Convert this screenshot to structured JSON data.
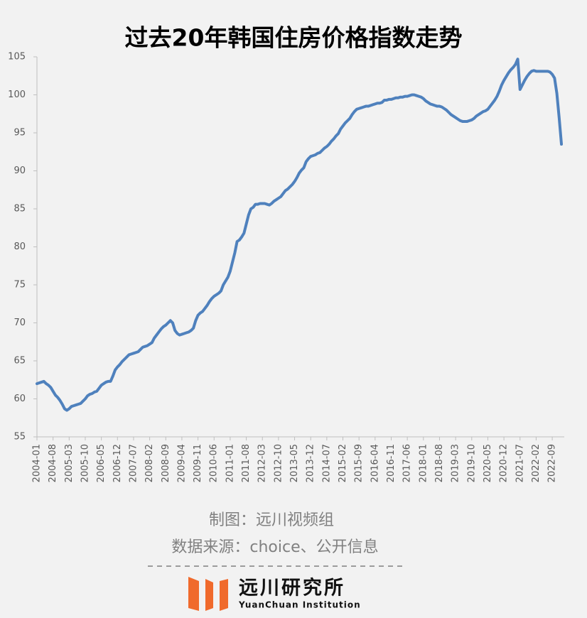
{
  "chart_data": {
    "type": "line",
    "title": "过去20年韩国住房价格指数走势",
    "categories": [
      "2004-01",
      null,
      null,
      null,
      null,
      null,
      null,
      "2004-08",
      null,
      null,
      null,
      null,
      null,
      null,
      "2005-03",
      null,
      null,
      null,
      null,
      null,
      null,
      "2005-10",
      null,
      null,
      null,
      null,
      null,
      null,
      "2006-05",
      null,
      null,
      null,
      null,
      null,
      null,
      "2006-12",
      null,
      null,
      null,
      null,
      null,
      null,
      "2007-07",
      null,
      null,
      null,
      null,
      null,
      null,
      "2008-02",
      null,
      null,
      null,
      null,
      null,
      null,
      "2008-09",
      null,
      null,
      null,
      null,
      null,
      null,
      "2009-04",
      null,
      null,
      null,
      null,
      null,
      null,
      "2009-11",
      null,
      null,
      null,
      null,
      null,
      null,
      "2010-06",
      null,
      null,
      null,
      null,
      null,
      null,
      "2011-01",
      null,
      null,
      null,
      null,
      null,
      null,
      "2011-08",
      null,
      null,
      null,
      null,
      null,
      null,
      "2012-03",
      null,
      null,
      null,
      null,
      null,
      null,
      "2012-10",
      null,
      null,
      null,
      null,
      null,
      null,
      "2013-05",
      null,
      null,
      null,
      null,
      null,
      null,
      "2013-12",
      null,
      null,
      null,
      null,
      null,
      null,
      "2014-07",
      null,
      null,
      null,
      null,
      null,
      null,
      "2015-02",
      null,
      null,
      null,
      null,
      null,
      null,
      "2015-09",
      null,
      null,
      null,
      null,
      null,
      null,
      "2016-04",
      null,
      null,
      null,
      null,
      null,
      null,
      "2016-11",
      null,
      null,
      null,
      null,
      null,
      null,
      "2017-06",
      null,
      null,
      null,
      null,
      null,
      null,
      "2018-01",
      null,
      null,
      null,
      null,
      null,
      null,
      "2018-08",
      null,
      null,
      null,
      null,
      null,
      null,
      "2019-03",
      null,
      null,
      null,
      null,
      null,
      null,
      "2019-10",
      null,
      null,
      null,
      null,
      null,
      null,
      "2020-05",
      null,
      null,
      null,
      null,
      null,
      null,
      "2020-12",
      null,
      null,
      null,
      null,
      null,
      null,
      "2021-07",
      null,
      null,
      null,
      null,
      null,
      null,
      "2022-02",
      null,
      null,
      null,
      null,
      null,
      null,
      "2022-09",
      null,
      null,
      null,
      null
    ],
    "series": [
      {
        "color": "#4f81bd",
        "values": [
          62.0,
          62.1,
          62.2,
          62.3,
          62.0,
          61.8,
          61.5,
          61.0,
          60.5,
          60.2,
          59.8,
          59.3,
          58.7,
          58.5,
          58.7,
          59.0,
          59.1,
          59.2,
          59.3,
          59.4,
          59.7,
          60.0,
          60.4,
          60.6,
          60.7,
          60.9,
          61.0,
          61.4,
          61.8,
          62.0,
          62.2,
          62.3,
          62.3,
          63.0,
          63.8,
          64.2,
          64.5,
          64.9,
          65.2,
          65.5,
          65.8,
          65.9,
          66.0,
          66.1,
          66.2,
          66.5,
          66.8,
          66.9,
          67.0,
          67.2,
          67.4,
          68.0,
          68.4,
          68.8,
          69.2,
          69.5,
          69.7,
          70.0,
          70.3,
          70.0,
          69.0,
          68.6,
          68.4,
          68.5,
          68.6,
          68.7,
          68.8,
          69.0,
          69.3,
          70.3,
          71.0,
          71.3,
          71.5,
          71.9,
          72.3,
          72.8,
          73.2,
          73.5,
          73.7,
          73.9,
          74.2,
          75.0,
          75.5,
          76.0,
          76.8,
          78.0,
          79.2,
          80.7,
          80.9,
          81.3,
          81.8,
          83.0,
          84.2,
          85.0,
          85.2,
          85.6,
          85.6,
          85.7,
          85.7,
          85.7,
          85.6,
          85.5,
          85.7,
          86.0,
          86.2,
          86.4,
          86.6,
          87.0,
          87.4,
          87.6,
          87.9,
          88.2,
          88.6,
          89.1,
          89.7,
          90.1,
          90.4,
          91.2,
          91.6,
          91.9,
          92.0,
          92.1,
          92.3,
          92.4,
          92.7,
          93.0,
          93.2,
          93.5,
          93.9,
          94.2,
          94.6,
          94.9,
          95.5,
          95.9,
          96.3,
          96.6,
          96.9,
          97.4,
          97.8,
          98.1,
          98.2,
          98.3,
          98.4,
          98.5,
          98.5,
          98.6,
          98.7,
          98.8,
          98.9,
          98.9,
          99.0,
          99.3,
          99.3,
          99.4,
          99.4,
          99.5,
          99.6,
          99.6,
          99.7,
          99.7,
          99.8,
          99.8,
          99.9,
          100.0,
          100.0,
          99.9,
          99.8,
          99.7,
          99.5,
          99.2,
          99.0,
          98.8,
          98.7,
          98.6,
          98.5,
          98.5,
          98.4,
          98.2,
          98.0,
          97.7,
          97.4,
          97.2,
          97.0,
          96.8,
          96.6,
          96.5,
          96.5,
          96.5,
          96.6,
          96.7,
          96.9,
          97.2,
          97.4,
          97.6,
          97.8,
          97.9,
          98.1,
          98.5,
          98.9,
          99.3,
          99.8,
          100.5,
          101.3,
          101.9,
          102.4,
          102.9,
          103.3,
          103.6,
          104.0,
          104.7,
          100.7,
          101.3,
          101.9,
          102.4,
          102.8,
          103.1,
          103.2,
          103.1,
          103.1,
          103.1,
          103.1,
          103.1,
          103.1,
          103.0,
          102.7,
          102.2,
          100.2,
          97.0,
          93.5
        ]
      }
    ],
    "ylim": [
      55,
      105
    ],
    "yticks": [
      55,
      60,
      65,
      70,
      75,
      80,
      85,
      90,
      95,
      100,
      105
    ],
    "grid": false
  },
  "footer": {
    "credit": "制图：远川视频组",
    "source": "数据来源：choice、公开信息",
    "logo_name": "远川研究所",
    "logo_subtitle": "YuanChuan Institution"
  }
}
